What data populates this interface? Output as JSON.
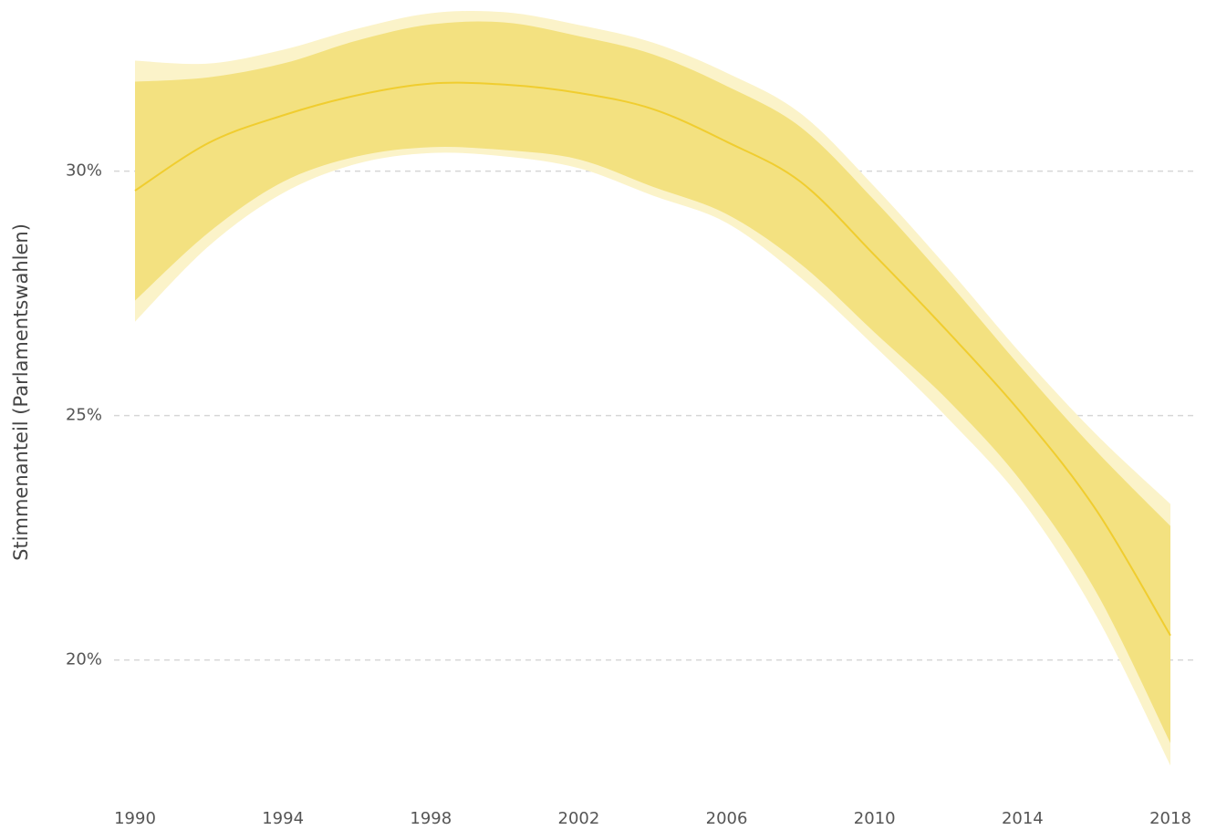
{
  "chart_data": {
    "type": "line-band",
    "y_label": "Stimmenanteil (Parlamentswahlen)",
    "x": [
      1990,
      1992,
      1994,
      1996,
      1998,
      2000,
      2002,
      2004,
      2006,
      2008,
      2010,
      2012,
      2014,
      2016,
      2018
    ],
    "line": {
      "color": "#f0cd2f",
      "values": [
        29.6,
        30.58,
        31.14,
        31.55,
        31.79,
        31.77,
        31.6,
        31.27,
        30.6,
        29.78,
        28.28,
        26.7,
        25.02,
        23.06,
        20.5
      ]
    },
    "bands": [
      {
        "color": "#fbf3c9",
        "upper": [
          32.26,
          32.2,
          32.48,
          32.91,
          33.23,
          33.25,
          32.99,
          32.63,
          32.01,
          31.18,
          29.68,
          28.0,
          26.23,
          24.61,
          23.19
        ],
        "lower": [
          26.92,
          28.47,
          29.55,
          30.15,
          30.37,
          30.3,
          30.06,
          29.5,
          28.94,
          27.82,
          26.42,
          24.93,
          23.25,
          20.9,
          17.84
        ]
      },
      {
        "color": "#f3e180",
        "upper": [
          31.83,
          31.92,
          32.2,
          32.67,
          33.0,
          33.04,
          32.76,
          32.39,
          31.74,
          30.9,
          29.4,
          27.72,
          25.95,
          24.27,
          22.74
        ],
        "lower": [
          27.35,
          28.75,
          29.78,
          30.3,
          30.49,
          30.43,
          30.24,
          29.68,
          29.12,
          28.1,
          26.7,
          25.3,
          23.62,
          21.38,
          18.3
        ]
      }
    ],
    "xlim": [
      1990,
      2018
    ],
    "xticks": [
      1990,
      1994,
      1998,
      2002,
      2006,
      2010,
      2014,
      2018
    ],
    "ylim": [
      17.5,
      33.5
    ],
    "yticks": [
      {
        "value": 20,
        "label": "20%"
      },
      {
        "value": 25,
        "label": "25%"
      },
      {
        "value": 30,
        "label": "30%"
      }
    ],
    "grid": true
  }
}
